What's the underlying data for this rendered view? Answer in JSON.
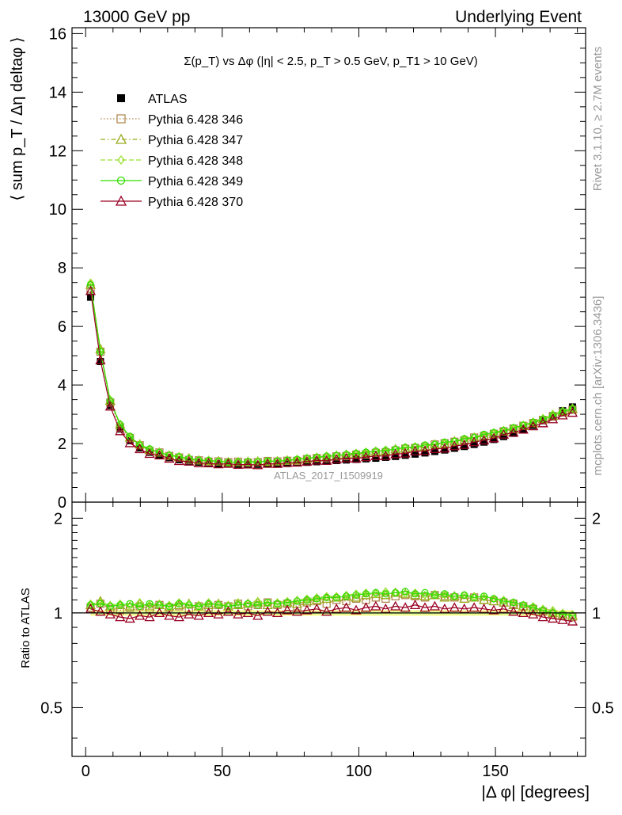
{
  "header": {
    "left": "13000 GeV pp",
    "right": "Underlying Event"
  },
  "side": {
    "rivet": "Rivet 3.1.10, ≥ 2.7M events",
    "mcplots": "mcplots.cern.ch [arXiv:1306.3436]"
  },
  "watermark": "ATLAS_2017_I1509919",
  "colors": {
    "data": "#000000",
    "p346": "#b08850",
    "p347": "#9aaa1a",
    "p348": "#99e030",
    "p349": "#33dd00",
    "p370": "#990022",
    "band_yellow": "#ffff88",
    "band_green": "#ccf099"
  },
  "chart_data": {
    "type": "line",
    "title": "Σ(p_T) vs Δφ (|η| < 2.5, p_T > 0.5 GeV, p_T1 > 10 GeV)",
    "ylabel": "⟨ sum p_T / Δη deltaφ ⟩",
    "ratio_ylabel": "Ratio to ATLAS",
    "xlabel": "|Δ φ| [degrees]",
    "xlim": [
      -5,
      183
    ],
    "ylim": [
      0,
      16.2
    ],
    "ratio_ylim": [
      0.35,
      2.25
    ],
    "x_ticks": [
      0,
      50,
      100,
      150
    ],
    "y_ticks": [
      0,
      2,
      4,
      6,
      8,
      10,
      12,
      14,
      16
    ],
    "ratio_ticks": [
      0.5,
      1,
      2
    ],
    "legend_position": "top-left",
    "series": [
      {
        "name": "ATLAS",
        "key": "data",
        "marker": "filled-square",
        "line": "none"
      },
      {
        "name": "Pythia 6.428 346",
        "key": "p346",
        "marker": "open-square",
        "line": "dotted"
      },
      {
        "name": "Pythia 6.428 347",
        "key": "p347",
        "marker": "open-triangle",
        "line": "dashdot"
      },
      {
        "name": "Pythia 6.428 348",
        "key": "p348",
        "marker": "open-diamond",
        "line": "dashed"
      },
      {
        "name": "Pythia 6.428 349",
        "key": "p349",
        "marker": "open-circle",
        "line": "solid"
      },
      {
        "name": "Pythia 6.428 370",
        "key": "p370",
        "marker": "open-triangle",
        "line": "solid"
      }
    ],
    "x": [
      1.8,
      5.4,
      9,
      12.6,
      16.2,
      19.8,
      23.4,
      27,
      30.6,
      34.2,
      37.8,
      41.4,
      45,
      48.6,
      52.2,
      55.8,
      59.4,
      63,
      66.6,
      70.2,
      73.8,
      77.4,
      81,
      84.6,
      88.2,
      91.8,
      95.4,
      99,
      102.6,
      106.2,
      109.8,
      113.4,
      117,
      120.6,
      124.2,
      127.8,
      131.4,
      135,
      138.6,
      142.2,
      145.8,
      149.4,
      153,
      156.6,
      160.2,
      163.8,
      167.4,
      171,
      174.6,
      178.2
    ],
    "data_y": [
      7.0,
      4.8,
      3.3,
      2.5,
      2.1,
      1.85,
      1.7,
      1.6,
      1.52,
      1.45,
      1.4,
      1.36,
      1.33,
      1.31,
      1.3,
      1.29,
      1.29,
      1.29,
      1.3,
      1.31,
      1.32,
      1.34,
      1.36,
      1.38,
      1.4,
      1.42,
      1.44,
      1.46,
      1.48,
      1.5,
      1.53,
      1.56,
      1.6,
      1.64,
      1.68,
      1.73,
      1.78,
      1.84,
      1.9,
      1.97,
      2.05,
      2.14,
      2.24,
      2.35,
      2.48,
      2.62,
      2.78,
      2.95,
      3.12,
      3.25
    ],
    "ratios": {
      "p346": [
        1.04,
        1.07,
        1.03,
        1.02,
        1.04,
        1.05,
        1.03,
        1.06,
        1.04,
        1.05,
        1.03,
        1.05,
        1.04,
        1.06,
        1.05,
        1.07,
        1.05,
        1.06,
        1.08,
        1.06,
        1.07,
        1.05,
        1.08,
        1.09,
        1.07,
        1.1,
        1.09,
        1.11,
        1.1,
        1.12,
        1.11,
        1.13,
        1.14,
        1.13,
        1.12,
        1.14,
        1.13,
        1.12,
        1.11,
        1.12,
        1.1,
        1.09,
        1.08,
        1.07,
        1.05,
        1.03,
        1.01,
        0.99,
        0.98,
        0.97
      ],
      "p347": [
        1.06,
        1.09,
        1.05,
        1.06,
        1.05,
        1.07,
        1.05,
        1.06,
        1.05,
        1.06,
        1.07,
        1.05,
        1.06,
        1.07,
        1.05,
        1.06,
        1.07,
        1.08,
        1.06,
        1.07,
        1.08,
        1.07,
        1.09,
        1.1,
        1.11,
        1.12,
        1.13,
        1.12,
        1.14,
        1.15,
        1.14,
        1.16,
        1.15,
        1.14,
        1.13,
        1.14,
        1.12,
        1.13,
        1.11,
        1.12,
        1.1,
        1.09,
        1.08,
        1.06,
        1.05,
        1.03,
        1.02,
        1.0,
        0.99,
        0.98
      ],
      "p348": [
        1.07,
        1.08,
        1.06,
        1.07,
        1.05,
        1.08,
        1.06,
        1.07,
        1.06,
        1.08,
        1.07,
        1.06,
        1.08,
        1.07,
        1.06,
        1.08,
        1.07,
        1.09,
        1.07,
        1.08,
        1.09,
        1.1,
        1.11,
        1.12,
        1.13,
        1.13,
        1.14,
        1.15,
        1.16,
        1.15,
        1.17,
        1.16,
        1.15,
        1.16,
        1.14,
        1.15,
        1.14,
        1.13,
        1.14,
        1.13,
        1.12,
        1.11,
        1.1,
        1.08,
        1.06,
        1.05,
        1.03,
        1.02,
        1.0,
        0.99
      ],
      "p349": [
        1.06,
        1.07,
        1.05,
        1.06,
        1.07,
        1.05,
        1.07,
        1.06,
        1.05,
        1.07,
        1.06,
        1.05,
        1.07,
        1.06,
        1.05,
        1.06,
        1.07,
        1.06,
        1.08,
        1.07,
        1.08,
        1.09,
        1.1,
        1.11,
        1.12,
        1.12,
        1.13,
        1.14,
        1.15,
        1.16,
        1.15,
        1.16,
        1.17,
        1.15,
        1.16,
        1.14,
        1.15,
        1.13,
        1.14,
        1.12,
        1.13,
        1.11,
        1.09,
        1.08,
        1.06,
        1.04,
        1.02,
        1.0,
        0.99,
        0.98
      ],
      "p370": [
        1.03,
        1.01,
        0.99,
        0.97,
        0.96,
        0.98,
        0.97,
        1.0,
        0.98,
        0.97,
        0.99,
        0.98,
        1.0,
        0.99,
        1.01,
        0.99,
        1.0,
        0.98,
        1.01,
        1.0,
        1.02,
        1.01,
        1.02,
        1.03,
        1.01,
        1.03,
        1.04,
        1.02,
        1.04,
        1.05,
        1.03,
        1.05,
        1.04,
        1.06,
        1.04,
        1.05,
        1.03,
        1.04,
        1.03,
        1.04,
        1.03,
        1.02,
        1.03,
        1.01,
        1.0,
        0.99,
        0.97,
        0.96,
        0.95,
        0.94
      ]
    }
  }
}
